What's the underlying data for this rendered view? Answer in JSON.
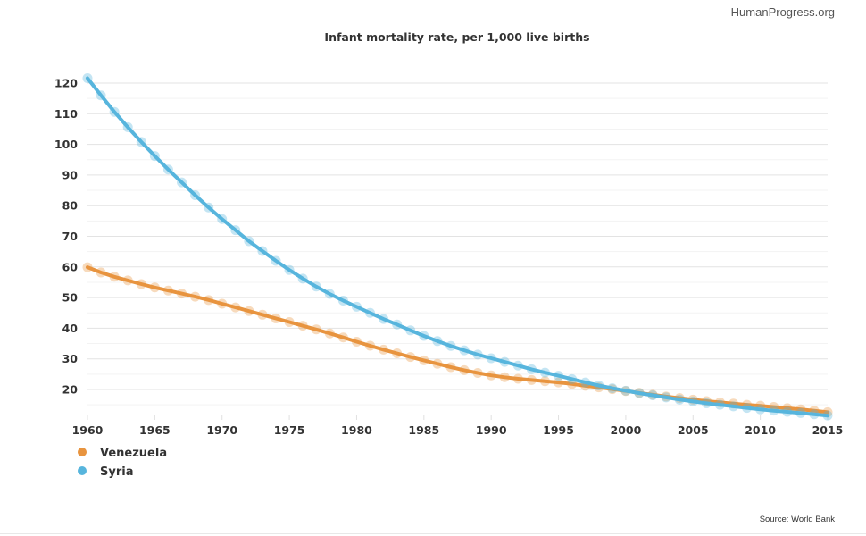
{
  "brand": "HumanProgress.org",
  "source": "Source: World Bank",
  "chart_data": {
    "type": "line",
    "title": "Infant mortality rate, per 1,000 live births",
    "xlabel": "",
    "ylabel": "",
    "xlim": [
      1960,
      2015
    ],
    "ylim": [
      10,
      122
    ],
    "x_ticks": [
      1960,
      1965,
      1970,
      1975,
      1980,
      1985,
      1990,
      1995,
      2000,
      2005,
      2010,
      2015
    ],
    "y_ticks": [
      20,
      30,
      40,
      50,
      60,
      70,
      80,
      90,
      100,
      110,
      120
    ],
    "grid": true,
    "legend_position": "bottom-left",
    "x": [
      1960,
      1961,
      1962,
      1963,
      1964,
      1965,
      1966,
      1967,
      1968,
      1969,
      1970,
      1971,
      1972,
      1973,
      1974,
      1975,
      1976,
      1977,
      1978,
      1979,
      1980,
      1981,
      1982,
      1983,
      1984,
      1985,
      1986,
      1987,
      1988,
      1989,
      1990,
      1991,
      1992,
      1993,
      1994,
      1995,
      1996,
      1997,
      1998,
      1999,
      2000,
      2001,
      2002,
      2003,
      2004,
      2005,
      2006,
      2007,
      2008,
      2009,
      2010,
      2011,
      2012,
      2013,
      2014,
      2015
    ],
    "series": [
      {
        "name": "Venezuela",
        "color": "#e8943f",
        "values": [
          59.9,
          58.2,
          56.8,
          55.6,
          54.4,
          53.3,
          52.3,
          51.3,
          50.3,
          49.2,
          48.0,
          46.8,
          45.6,
          44.4,
          43.2,
          42.0,
          40.8,
          39.6,
          38.3,
          37.0,
          35.6,
          34.3,
          33.0,
          31.8,
          30.6,
          29.5,
          28.4,
          27.3,
          26.3,
          25.4,
          24.6,
          24.0,
          23.5,
          23.1,
          22.7,
          22.3,
          21.8,
          21.2,
          20.7,
          20.1,
          19.5,
          18.9,
          18.3,
          17.7,
          17.2,
          16.7,
          16.2,
          15.8,
          15.4,
          15.0,
          14.7,
          14.3,
          13.9,
          13.5,
          13.1,
          12.6
        ]
      },
      {
        "name": "Syria",
        "color": "#57b5dd",
        "values": [
          121.6,
          116.0,
          110.6,
          105.6,
          100.8,
          96.2,
          91.8,
          87.6,
          83.4,
          79.4,
          75.6,
          72.0,
          68.4,
          65.2,
          62.0,
          59.0,
          56.2,
          53.6,
          51.2,
          49.0,
          47.0,
          45.0,
          43.0,
          41.2,
          39.3,
          37.5,
          35.8,
          34.2,
          32.8,
          31.4,
          30.2,
          29.0,
          27.8,
          26.6,
          25.5,
          24.5,
          23.4,
          22.3,
          21.3,
          20.4,
          19.6,
          18.8,
          18.1,
          17.4,
          16.7,
          16.1,
          15.5,
          15.0,
          14.5,
          14.0,
          13.5,
          13.1,
          12.7,
          12.3,
          11.9,
          11.5
        ]
      }
    ]
  }
}
